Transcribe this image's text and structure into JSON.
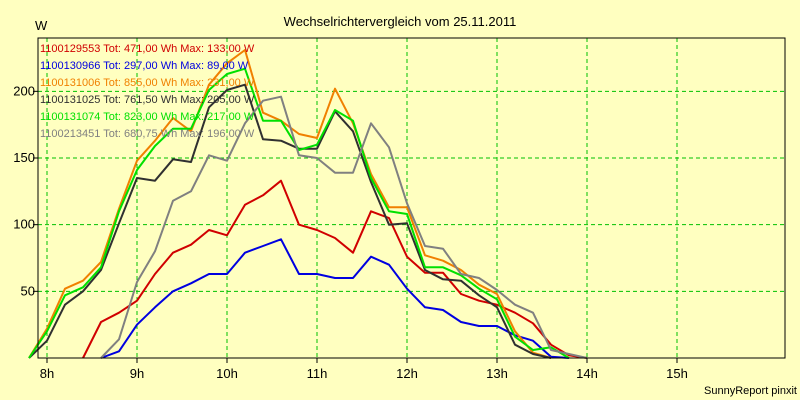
{
  "chart_data": {
    "type": "line",
    "title": "Wechselrichtervergleich vom 25.11.2011",
    "ylabel": "W",
    "xlabel": "",
    "footer": "SunnyReport pinxit",
    "x_ticks": [
      "8h",
      "9h",
      "10h",
      "11h",
      "12h",
      "13h",
      "14h",
      "15h"
    ],
    "y_ticks": [
      "50",
      "100",
      "150",
      "200"
    ],
    "xlim": [
      7.9,
      16.2
    ],
    "ylim": [
      0,
      240
    ],
    "grid": true,
    "x_unit": "hour",
    "series": [
      {
        "label": "1100129553 Tot: 471,00 Wh Max: 133,00 W",
        "color": "#d00000",
        "points": [
          [
            8.4,
            0
          ],
          [
            8.6,
            27
          ],
          [
            8.8,
            34
          ],
          [
            9.0,
            43
          ],
          [
            9.2,
            63
          ],
          [
            9.4,
            79
          ],
          [
            9.6,
            85
          ],
          [
            9.8,
            96
          ],
          [
            10.0,
            92
          ],
          [
            10.2,
            115
          ],
          [
            10.4,
            122
          ],
          [
            10.6,
            133
          ],
          [
            10.8,
            100
          ],
          [
            11.0,
            96
          ],
          [
            11.2,
            90
          ],
          [
            11.4,
            79
          ],
          [
            11.6,
            110
          ],
          [
            11.8,
            105
          ],
          [
            12.0,
            76
          ],
          [
            12.2,
            64
          ],
          [
            12.4,
            64
          ],
          [
            12.6,
            48
          ],
          [
            12.8,
            43
          ],
          [
            13.0,
            40
          ],
          [
            13.2,
            34
          ],
          [
            13.4,
            26
          ],
          [
            13.6,
            10
          ],
          [
            13.8,
            2
          ],
          [
            14.0,
            0
          ]
        ]
      },
      {
        "label": "1100130966 Tot: 297,00 Wh Max: 89,00 W",
        "color": "#0000e0",
        "points": [
          [
            8.6,
            0
          ],
          [
            8.8,
            5
          ],
          [
            9.0,
            25
          ],
          [
            9.2,
            38
          ],
          [
            9.4,
            50
          ],
          [
            9.6,
            56
          ],
          [
            9.8,
            63
          ],
          [
            10.0,
            63
          ],
          [
            10.2,
            79
          ],
          [
            10.4,
            84
          ],
          [
            10.6,
            89
          ],
          [
            10.8,
            63
          ],
          [
            11.0,
            63
          ],
          [
            11.2,
            60
          ],
          [
            11.4,
            60
          ],
          [
            11.6,
            76
          ],
          [
            11.8,
            70
          ],
          [
            12.0,
            52
          ],
          [
            12.2,
            38
          ],
          [
            12.4,
            36
          ],
          [
            12.6,
            27
          ],
          [
            12.8,
            24
          ],
          [
            13.0,
            24
          ],
          [
            13.2,
            17
          ],
          [
            13.4,
            13
          ],
          [
            13.6,
            1
          ],
          [
            13.8,
            0
          ]
        ]
      },
      {
        "label": "1100131006 Tot: 855,00 Wh Max: 231,00 W",
        "color": "#f08000",
        "points": [
          [
            7.8,
            0
          ],
          [
            8.0,
            22
          ],
          [
            8.2,
            52
          ],
          [
            8.4,
            58
          ],
          [
            8.6,
            72
          ],
          [
            8.8,
            112
          ],
          [
            9.0,
            148
          ],
          [
            9.2,
            163
          ],
          [
            9.4,
            180
          ],
          [
            9.6,
            170
          ],
          [
            9.8,
            205
          ],
          [
            10.0,
            221
          ],
          [
            10.2,
            231
          ],
          [
            10.4,
            184
          ],
          [
            10.6,
            178
          ],
          [
            10.8,
            168
          ],
          [
            11.0,
            165
          ],
          [
            11.2,
            202
          ],
          [
            11.4,
            176
          ],
          [
            11.6,
            138
          ],
          [
            11.8,
            113
          ],
          [
            12.0,
            113
          ],
          [
            12.2,
            77
          ],
          [
            12.4,
            73
          ],
          [
            12.6,
            66
          ],
          [
            12.8,
            55
          ],
          [
            13.0,
            48
          ],
          [
            13.2,
            20
          ],
          [
            13.4,
            4
          ],
          [
            13.6,
            0
          ]
        ]
      },
      {
        "label": "1100131025 Tot: 761,50 Wh Max: 205,00 W",
        "color": "#303030",
        "points": [
          [
            7.8,
            0
          ],
          [
            8.0,
            13
          ],
          [
            8.2,
            40
          ],
          [
            8.4,
            50
          ],
          [
            8.6,
            66
          ],
          [
            8.8,
            101
          ],
          [
            9.0,
            135
          ],
          [
            9.2,
            133
          ],
          [
            9.4,
            149
          ],
          [
            9.6,
            147
          ],
          [
            9.8,
            188
          ],
          [
            10.0,
            201
          ],
          [
            10.2,
            205
          ],
          [
            10.4,
            164
          ],
          [
            10.6,
            163
          ],
          [
            10.8,
            157
          ],
          [
            11.0,
            157
          ],
          [
            11.2,
            185
          ],
          [
            11.4,
            170
          ],
          [
            11.6,
            132
          ],
          [
            11.8,
            100
          ],
          [
            12.0,
            101
          ],
          [
            12.2,
            66
          ],
          [
            12.4,
            59
          ],
          [
            12.6,
            58
          ],
          [
            12.8,
            47
          ],
          [
            13.0,
            38
          ],
          [
            13.2,
            10
          ],
          [
            13.4,
            3
          ],
          [
            13.6,
            0
          ]
        ]
      },
      {
        "label": "1100131074 Tot: 823,00 Wh Max: 217,00 W",
        "color": "#00e000",
        "points": [
          [
            7.8,
            0
          ],
          [
            8.0,
            20
          ],
          [
            8.2,
            47
          ],
          [
            8.4,
            53
          ],
          [
            8.6,
            68
          ],
          [
            8.8,
            110
          ],
          [
            9.0,
            141
          ],
          [
            9.2,
            159
          ],
          [
            9.4,
            172
          ],
          [
            9.6,
            172
          ],
          [
            9.8,
            201
          ],
          [
            10.0,
            213
          ],
          [
            10.2,
            217
          ],
          [
            10.4,
            178
          ],
          [
            10.6,
            178
          ],
          [
            10.8,
            156
          ],
          [
            11.0,
            160
          ],
          [
            11.2,
            186
          ],
          [
            11.4,
            178
          ],
          [
            11.6,
            135
          ],
          [
            11.8,
            110
          ],
          [
            12.0,
            108
          ],
          [
            12.2,
            68
          ],
          [
            12.4,
            68
          ],
          [
            12.6,
            62
          ],
          [
            12.8,
            52
          ],
          [
            13.0,
            44
          ],
          [
            13.2,
            16
          ],
          [
            13.4,
            6
          ],
          [
            13.6,
            8
          ],
          [
            13.8,
            0
          ]
        ]
      },
      {
        "label": "1100213451 Tot: 680,75 Wh Max: 196,00 W",
        "color": "#808080",
        "points": [
          [
            8.6,
            0
          ],
          [
            8.8,
            14
          ],
          [
            9.0,
            57
          ],
          [
            9.2,
            80
          ],
          [
            9.4,
            118
          ],
          [
            9.6,
            125
          ],
          [
            9.8,
            152
          ],
          [
            10.0,
            148
          ],
          [
            10.2,
            176
          ],
          [
            10.4,
            193
          ],
          [
            10.6,
            196
          ],
          [
            10.8,
            152
          ],
          [
            11.0,
            150
          ],
          [
            11.2,
            139
          ],
          [
            11.4,
            139
          ],
          [
            11.6,
            176
          ],
          [
            11.8,
            158
          ],
          [
            12.0,
            116
          ],
          [
            12.2,
            84
          ],
          [
            12.4,
            82
          ],
          [
            12.6,
            63
          ],
          [
            12.8,
            60
          ],
          [
            13.0,
            51
          ],
          [
            13.2,
            40
          ],
          [
            13.4,
            34
          ],
          [
            13.6,
            6
          ],
          [
            13.8,
            3
          ],
          [
            14.0,
            0
          ]
        ]
      }
    ]
  }
}
